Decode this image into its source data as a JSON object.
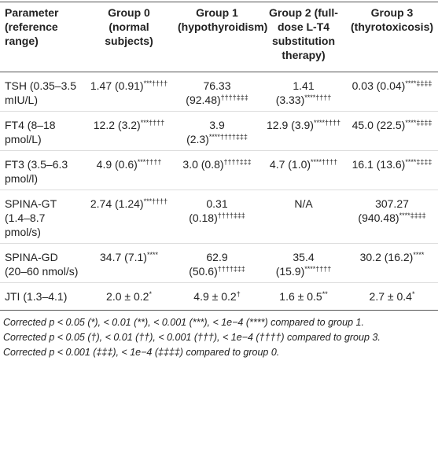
{
  "table": {
    "header": [
      "Parameter (reference range)",
      "Group 0 (normal subjects)",
      "Group 1 (hypothyroidism)",
      "Group 2 (full-dose L-T4 substitution therapy)",
      "Group 3 (thyrotoxicosis)"
    ],
    "rows": [
      [
        "TSH (0.35–3.5 mIU/L)",
        {
          "text": "1.47 (0.91)",
          "sup": "***††††"
        },
        {
          "text": "76.33 (92.48)",
          "sup": "††††‡‡‡"
        },
        {
          "text": "1.41 (3.33)",
          "sup": "****††††"
        },
        {
          "text": "0.03 (0.04)",
          "sup": "****‡‡‡‡"
        }
      ],
      [
        "FT4 (8–18 pmol/L)",
        {
          "text": "12.2 (3.2)",
          "sup": "***††††"
        },
        {
          "text": "3.9 (2.3)",
          "sup": "****††††‡‡‡"
        },
        {
          "text": "12.9 (3.9)",
          "sup": "****††††"
        },
        {
          "text": "45.0 (22.5)",
          "sup": "****‡‡‡‡"
        }
      ],
      [
        "FT3 (3.5–6.3 pmol/l)",
        {
          "text": "4.9 (0.6)",
          "sup": "***††††"
        },
        {
          "text": "3.0 (0.8)",
          "sup": "††††‡‡‡"
        },
        {
          "text": "4.7 (1.0)",
          "sup": "****††††"
        },
        {
          "text": "16.1 (13.6)",
          "sup": "****‡‡‡‡"
        }
      ],
      [
        "SPINA-GT (1.4–8.7 pmol/s)",
        {
          "text": "2.74 (1.24)",
          "sup": "***††††"
        },
        {
          "text": "0.31 (0.18)",
          "sup": "††††‡‡‡"
        },
        {
          "text": "N/A"
        },
        {
          "text": "307.27 (940.48)",
          "sup": "****‡‡‡‡"
        }
      ],
      [
        "SPINA-GD (20–60 nmol/s)",
        {
          "text": "34.7 (7.1)",
          "sup": "****"
        },
        {
          "text": "62.9 (50.6)",
          "sup": "††††‡‡‡"
        },
        {
          "text": "35.4 (15.9)",
          "sup": "****††††"
        },
        {
          "text": "30.2 (16.2)",
          "sup": "****"
        }
      ],
      [
        "JTI (1.3–4.1)",
        {
          "text": "2.0 ± 0.2",
          "sup": "*"
        },
        {
          "text": "4.9 ± 0.2",
          "sup": "†"
        },
        {
          "text": "1.6 ± 0.5",
          "sup": "**"
        },
        {
          "text": "2.7 ± 0.4",
          "sup": "*"
        }
      ]
    ],
    "footnotes": [
      "Corrected p < 0.05 (*), < 0.01 (**), < 0.001 (***), < 1e−4 (****) compared to group 1.",
      "Corrected p < 0.05 (†), < 0.01 (††), < 0.001 (†††), < 1e−4 (††††) compared to group 3.",
      "Corrected p < 0.001 (‡‡‡), < 1e−4 (‡‡‡‡) compared to group 0."
    ]
  }
}
